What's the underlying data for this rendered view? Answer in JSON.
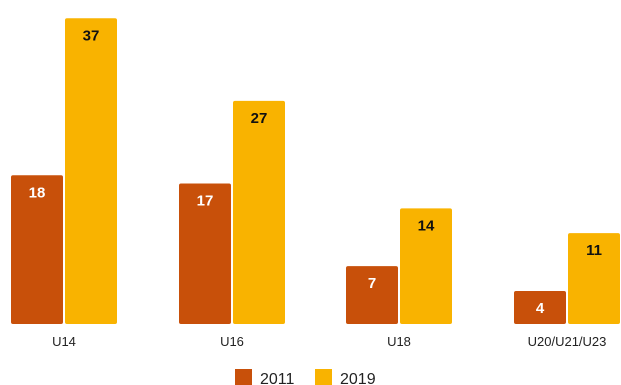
{
  "chart_data": {
    "type": "bar",
    "categories": [
      "U14",
      "U16",
      "U18",
      "U20/U21/U23"
    ],
    "series": [
      {
        "name": "2011",
        "values": [
          18,
          17,
          7,
          4
        ],
        "color": "#c8500a",
        "label_color": "#ffffff"
      },
      {
        "name": "2019",
        "values": [
          37,
          27,
          14,
          11
        ],
        "color": "#f9b300",
        "label_color": "#111111"
      }
    ],
    "ylim": [
      0,
      38
    ],
    "grid": false,
    "legend_position": "bottom-center"
  }
}
